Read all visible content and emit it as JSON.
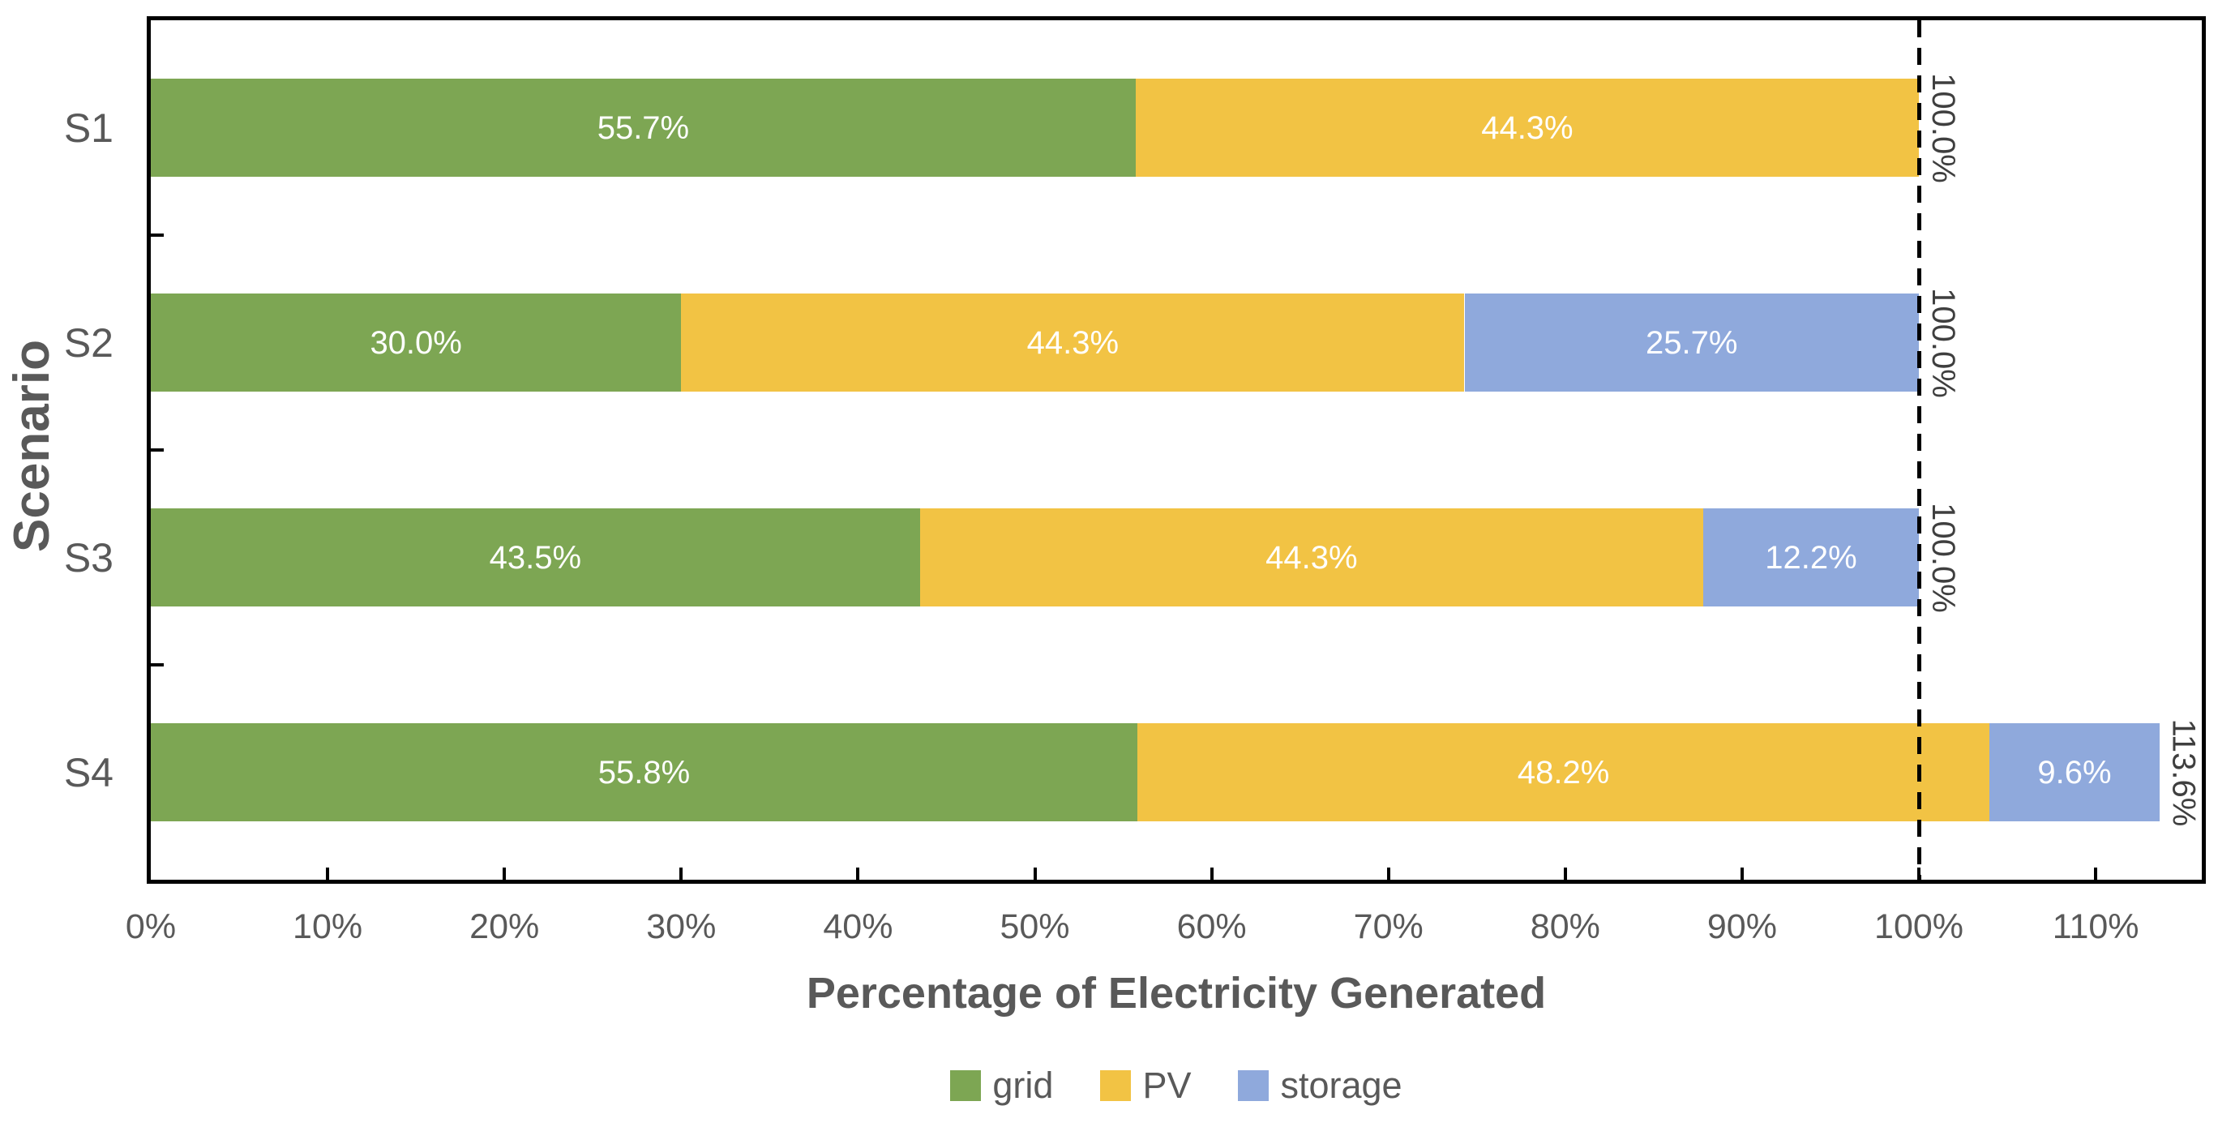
{
  "chart_data": {
    "type": "bar",
    "orientation": "horizontal-stacked",
    "xlabel": "Percentage of Electricity Generated",
    "ylabel": "Scenario",
    "categories": [
      "S1",
      "S2",
      "S3",
      "S4"
    ],
    "series": [
      {
        "name": "grid",
        "color": "#7DA653",
        "values": [
          55.7,
          30.0,
          43.5,
          55.8
        ]
      },
      {
        "name": "PV",
        "color": "#F2C344",
        "values": [
          44.3,
          44.3,
          44.3,
          48.2
        ]
      },
      {
        "name": "storage",
        "color": "#8FA9DC",
        "values": [
          0,
          25.7,
          12.2,
          9.6
        ]
      }
    ],
    "segment_labels": [
      [
        "55.7%",
        "44.3%",
        ""
      ],
      [
        "30.0%",
        "44.3%",
        "25.7%"
      ],
      [
        "43.5%",
        "44.3%",
        "12.2%"
      ],
      [
        "55.8%",
        "48.2%",
        "9.6%"
      ]
    ],
    "totals": [
      "100.0%",
      "100.0%",
      "100.0%",
      "113.6%"
    ],
    "total_values": [
      100.0,
      100.0,
      100.0,
      113.6
    ],
    "x_ticks": [
      "0%",
      "10%",
      "20%",
      "30%",
      "40%",
      "50%",
      "60%",
      "70%",
      "80%",
      "90%",
      "100%",
      "110%"
    ],
    "x_tick_values": [
      0,
      10,
      20,
      30,
      40,
      50,
      60,
      70,
      80,
      90,
      100,
      110
    ],
    "xlim": [
      0,
      116
    ],
    "reference_line_x": 100,
    "grid": false,
    "legend_position": "bottom"
  },
  "colors": {
    "bar_label_text": "#FFFFFF",
    "axis_text": "#595959",
    "total_label_text": "#3F3F3F",
    "axis_line": "#000000",
    "reference_line": "#000000",
    "background": "#FFFFFF"
  }
}
